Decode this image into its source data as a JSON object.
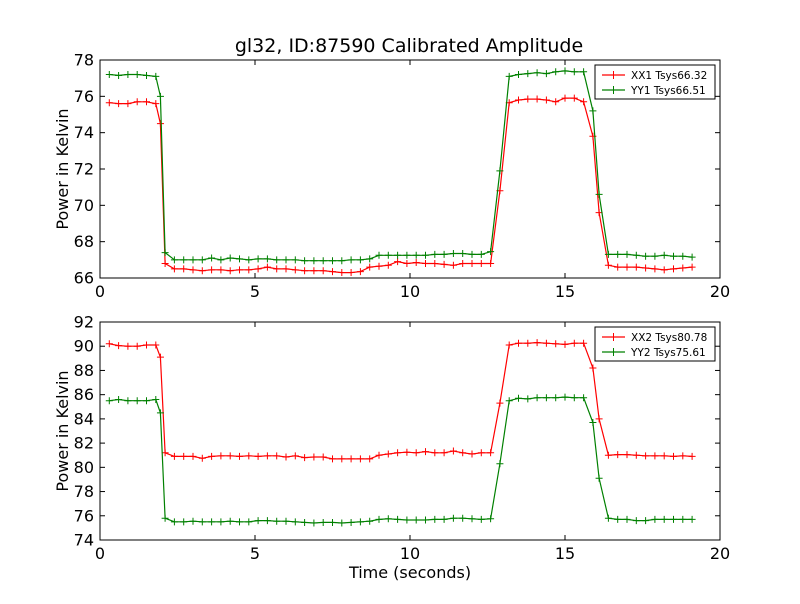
{
  "figure": {
    "title": "gl32, ID:87590 Calibrated Amplitude"
  },
  "chart_data": [
    {
      "type": "line",
      "title": "gl32, ID:87590 Calibrated Amplitude",
      "xlabel": "",
      "ylabel": "Power in Kelvin",
      "xlim": [
        0,
        20
      ],
      "ylim": [
        66,
        78
      ],
      "xticks": [
        0,
        5,
        10,
        15,
        20
      ],
      "yticks": [
        66,
        68,
        70,
        72,
        74,
        76,
        78
      ],
      "xtick_labels": [
        "0",
        "5",
        "10",
        "15",
        "20"
      ],
      "ytick_labels": [
        "66",
        "68",
        "70",
        "72",
        "74",
        "76",
        "78"
      ],
      "grid": false,
      "legend": "top-right",
      "x": [
        0.3,
        0.6,
        0.9,
        1.2,
        1.5,
        1.8,
        1.95,
        2.1,
        2.4,
        2.7,
        3.0,
        3.3,
        3.6,
        3.9,
        4.2,
        4.5,
        4.8,
        5.1,
        5.4,
        5.7,
        6.0,
        6.3,
        6.6,
        6.9,
        7.2,
        7.5,
        7.8,
        8.1,
        8.4,
        8.7,
        9.0,
        9.3,
        9.6,
        9.9,
        10.2,
        10.5,
        10.8,
        11.1,
        11.4,
        11.7,
        12.0,
        12.3,
        12.6,
        12.9,
        13.2,
        13.5,
        13.8,
        14.1,
        14.4,
        14.7,
        15.0,
        15.3,
        15.6,
        15.9,
        16.1,
        16.4,
        16.7,
        17.0,
        17.3,
        17.6,
        17.9,
        18.2,
        18.5,
        18.8,
        19.1
      ],
      "series": [
        {
          "name": "XX1 Tsys66.32",
          "color": "#ff0000",
          "values": [
            75.65,
            75.6,
            75.6,
            75.7,
            75.7,
            75.6,
            74.5,
            66.8,
            66.5,
            66.5,
            66.45,
            66.4,
            66.45,
            66.45,
            66.4,
            66.45,
            66.45,
            66.5,
            66.6,
            66.5,
            66.5,
            66.45,
            66.4,
            66.4,
            66.4,
            66.35,
            66.3,
            66.3,
            66.35,
            66.6,
            66.65,
            66.7,
            66.9,
            66.8,
            66.85,
            66.8,
            66.8,
            66.75,
            66.7,
            66.8,
            66.8,
            66.8,
            66.8,
            70.8,
            75.65,
            75.8,
            75.85,
            75.85,
            75.8,
            75.7,
            75.9,
            75.9,
            75.7,
            73.8,
            69.6,
            66.7,
            66.6,
            66.6,
            66.6,
            66.55,
            66.5,
            66.45,
            66.5,
            66.55,
            66.6
          ]
        },
        {
          "name": "YY1 Tsys66.51",
          "color": "#008000",
          "values": [
            77.2,
            77.15,
            77.2,
            77.2,
            77.15,
            77.1,
            76.0,
            67.4,
            67.0,
            67.0,
            67.0,
            67.0,
            67.1,
            67.0,
            67.1,
            67.05,
            67.0,
            67.05,
            67.05,
            67.0,
            67.0,
            67.0,
            66.95,
            66.95,
            66.95,
            66.95,
            66.95,
            67.0,
            67.0,
            67.05,
            67.25,
            67.25,
            67.25,
            67.25,
            67.25,
            67.25,
            67.3,
            67.3,
            67.35,
            67.35,
            67.3,
            67.3,
            67.45,
            71.9,
            77.1,
            77.2,
            77.25,
            77.3,
            77.25,
            77.35,
            77.4,
            77.35,
            77.35,
            75.2,
            70.6,
            67.3,
            67.3,
            67.3,
            67.25,
            67.2,
            67.2,
            67.25,
            67.2,
            67.2,
            67.15
          ]
        }
      ]
    },
    {
      "type": "line",
      "title": "",
      "xlabel": "Time (seconds)",
      "ylabel": "Power in Kelvin",
      "xlim": [
        0,
        20
      ],
      "ylim": [
        74,
        92
      ],
      "xticks": [
        0,
        5,
        10,
        15,
        20
      ],
      "yticks": [
        74,
        76,
        78,
        80,
        82,
        84,
        86,
        88,
        90,
        92
      ],
      "xtick_labels": [
        "0",
        "5",
        "10",
        "15",
        "20"
      ],
      "ytick_labels": [
        "74",
        "76",
        "78",
        "80",
        "82",
        "84",
        "86",
        "88",
        "90",
        "92"
      ],
      "grid": false,
      "legend": "top-right",
      "x": [
        0.3,
        0.6,
        0.9,
        1.2,
        1.5,
        1.8,
        1.95,
        2.1,
        2.4,
        2.7,
        3.0,
        3.3,
        3.6,
        3.9,
        4.2,
        4.5,
        4.8,
        5.1,
        5.4,
        5.7,
        6.0,
        6.3,
        6.6,
        6.9,
        7.2,
        7.5,
        7.8,
        8.1,
        8.4,
        8.7,
        9.0,
        9.3,
        9.6,
        9.9,
        10.2,
        10.5,
        10.8,
        11.1,
        11.4,
        11.7,
        12.0,
        12.3,
        12.6,
        12.9,
        13.2,
        13.5,
        13.8,
        14.1,
        14.4,
        14.7,
        15.0,
        15.3,
        15.6,
        15.9,
        16.1,
        16.4,
        16.7,
        17.0,
        17.3,
        17.6,
        17.9,
        18.2,
        18.5,
        18.8,
        19.1
      ],
      "series": [
        {
          "name": "XX2 Tsys80.78",
          "color": "#ff0000",
          "values": [
            90.2,
            90.05,
            90.0,
            90.0,
            90.1,
            90.1,
            89.1,
            81.2,
            80.9,
            80.9,
            80.9,
            80.75,
            80.9,
            80.95,
            80.95,
            80.9,
            80.95,
            80.9,
            80.95,
            80.95,
            80.85,
            80.95,
            80.8,
            80.85,
            80.85,
            80.7,
            80.7,
            80.7,
            80.7,
            80.7,
            81.0,
            81.1,
            81.2,
            81.25,
            81.2,
            81.3,
            81.2,
            81.2,
            81.35,
            81.2,
            81.1,
            81.2,
            81.2,
            85.3,
            90.1,
            90.25,
            90.25,
            90.3,
            90.25,
            90.2,
            90.15,
            90.25,
            90.25,
            88.2,
            84.0,
            81.0,
            81.05,
            81.05,
            81.0,
            80.95,
            80.95,
            80.95,
            80.9,
            80.95,
            80.9
          ]
        },
        {
          "name": "YY2 Tsys75.61",
          "color": "#008000",
          "values": [
            85.5,
            85.6,
            85.5,
            85.5,
            85.5,
            85.6,
            84.5,
            75.8,
            75.5,
            75.5,
            75.55,
            75.5,
            75.5,
            75.5,
            75.55,
            75.5,
            75.5,
            75.6,
            75.6,
            75.55,
            75.55,
            75.5,
            75.45,
            75.4,
            75.45,
            75.45,
            75.4,
            75.45,
            75.5,
            75.55,
            75.7,
            75.75,
            75.7,
            75.65,
            75.65,
            75.65,
            75.7,
            75.7,
            75.8,
            75.8,
            75.75,
            75.7,
            75.75,
            80.3,
            85.5,
            85.7,
            85.65,
            85.75,
            85.75,
            85.75,
            85.8,
            85.75,
            85.75,
            83.7,
            79.1,
            75.8,
            75.7,
            75.7,
            75.6,
            75.6,
            75.7,
            75.7,
            75.7,
            75.7,
            75.7
          ]
        }
      ]
    }
  ]
}
